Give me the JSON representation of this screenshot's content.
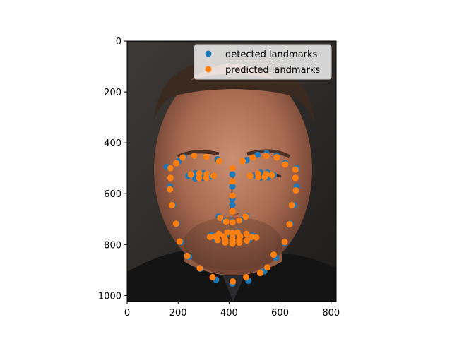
{
  "chart_data": {
    "type": "scatter",
    "title": "",
    "xlabel": "",
    "ylabel": "",
    "xlim": [
      0,
      820
    ],
    "ylim": [
      1024,
      0
    ],
    "y_axis_inverted": true,
    "grid": false,
    "legend_placement": "upper-right",
    "background_image": "portrait photograph of a man's face, dark background",
    "x_ticks": [
      0,
      200,
      400,
      600,
      800
    ],
    "y_ticks": [
      0,
      200,
      400,
      600,
      800,
      1000
    ],
    "x_tick_labels": [
      "0",
      "200",
      "400",
      "600",
      "800"
    ],
    "y_tick_labels": [
      "0",
      "200",
      "400",
      "600",
      "800",
      "1000"
    ],
    "series": [
      {
        "name": "detected landmarks",
        "color": "#1f77b4",
        "points": [
          [
            155,
            495
          ],
          [
            168,
            572
          ],
          [
            180,
            645
          ],
          [
            195,
            718
          ],
          [
            212,
            790
          ],
          [
            243,
            848
          ],
          [
            287,
            895
          ],
          [
            349,
            938
          ],
          [
            413,
            953
          ],
          [
            476,
            942
          ],
          [
            538,
            905
          ],
          [
            585,
            852
          ],
          [
            617,
            793
          ],
          [
            640,
            718
          ],
          [
            655,
            645
          ],
          [
            665,
            572
          ],
          [
            665,
            500
          ],
          [
            202,
            473
          ],
          [
            223,
            456
          ],
          [
            263,
            452
          ],
          [
            309,
            455
          ],
          [
            355,
            465
          ],
          [
            469,
            469
          ],
          [
            512,
            447
          ],
          [
            547,
            441
          ],
          [
            587,
            450
          ],
          [
            620,
            480
          ],
          [
            413,
            524
          ],
          [
            413,
            572
          ],
          [
            413,
            620
          ],
          [
            413,
            643
          ],
          [
            359,
            690
          ],
          [
            383,
            705
          ],
          [
            413,
            710
          ],
          [
            445,
            703
          ],
          [
            468,
            688
          ],
          [
            240,
            530
          ],
          [
            268,
            520
          ],
          [
            300,
            520
          ],
          [
            330,
            532
          ],
          [
            298,
            538
          ],
          [
            267,
            540
          ],
          [
            500,
            528
          ],
          [
            524,
            518
          ],
          [
            550,
            518
          ],
          [
            575,
            527
          ],
          [
            553,
            536
          ],
          [
            524,
            536
          ],
          [
            325,
            766
          ],
          [
            355,
            760
          ],
          [
            395,
            752
          ],
          [
            413,
            756
          ],
          [
            433,
            750
          ],
          [
            470,
            760
          ],
          [
            505,
            768
          ],
          [
            478,
            782
          ],
          [
            440,
            790
          ],
          [
            413,
            792
          ],
          [
            385,
            790
          ],
          [
            350,
            780
          ],
          [
            333,
            765
          ],
          [
            387,
            762
          ],
          [
            413,
            764
          ],
          [
            440,
            762
          ],
          [
            492,
            766
          ],
          [
            440,
            780
          ],
          [
            413,
            782
          ],
          [
            385,
            780
          ]
        ]
      },
      {
        "name": "predicted landmarks",
        "color": "#ff7f0e",
        "points": [
          [
            170,
            500
          ],
          [
            170,
            538
          ],
          [
            168,
            583
          ],
          [
            176,
            645
          ],
          [
            192,
            718
          ],
          [
            206,
            788
          ],
          [
            236,
            845
          ],
          [
            285,
            893
          ],
          [
            335,
            928
          ],
          [
            414,
            945
          ],
          [
            467,
            928
          ],
          [
            522,
            912
          ],
          [
            550,
            890
          ],
          [
            575,
            840
          ],
          [
            618,
            790
          ],
          [
            637,
            720
          ],
          [
            646,
            645
          ],
          [
            662,
            587
          ],
          [
            660,
            538
          ],
          [
            660,
            505
          ],
          [
            193,
            480
          ],
          [
            218,
            458
          ],
          [
            263,
            451
          ],
          [
            310,
            455
          ],
          [
            361,
            472
          ],
          [
            453,
            472
          ],
          [
            493,
            458
          ],
          [
            546,
            451
          ],
          [
            587,
            457
          ],
          [
            620,
            485
          ],
          [
            413,
            500
          ],
          [
            413,
            552
          ],
          [
            413,
            608
          ],
          [
            413,
            670
          ],
          [
            365,
            695
          ],
          [
            388,
            710
          ],
          [
            413,
            712
          ],
          [
            440,
            705
          ],
          [
            465,
            690
          ],
          [
            250,
            525
          ],
          [
            283,
            521
          ],
          [
            312,
            523
          ],
          [
            339,
            530
          ],
          [
            310,
            538
          ],
          [
            282,
            538
          ],
          [
            483,
            530
          ],
          [
            513,
            521
          ],
          [
            545,
            523
          ],
          [
            568,
            527
          ],
          [
            540,
            534
          ],
          [
            515,
            535
          ],
          [
            325,
            770
          ],
          [
            360,
            758
          ],
          [
            393,
            752
          ],
          [
            413,
            755
          ],
          [
            433,
            752
          ],
          [
            468,
            758
          ],
          [
            507,
            772
          ],
          [
            470,
            784
          ],
          [
            440,
            793
          ],
          [
            413,
            796
          ],
          [
            385,
            792
          ],
          [
            355,
            782
          ],
          [
            345,
            768
          ],
          [
            380,
            768
          ],
          [
            413,
            770
          ],
          [
            443,
            768
          ],
          [
            488,
            770
          ],
          [
            440,
            782
          ],
          [
            413,
            784
          ],
          [
            385,
            782
          ]
        ]
      }
    ]
  }
}
